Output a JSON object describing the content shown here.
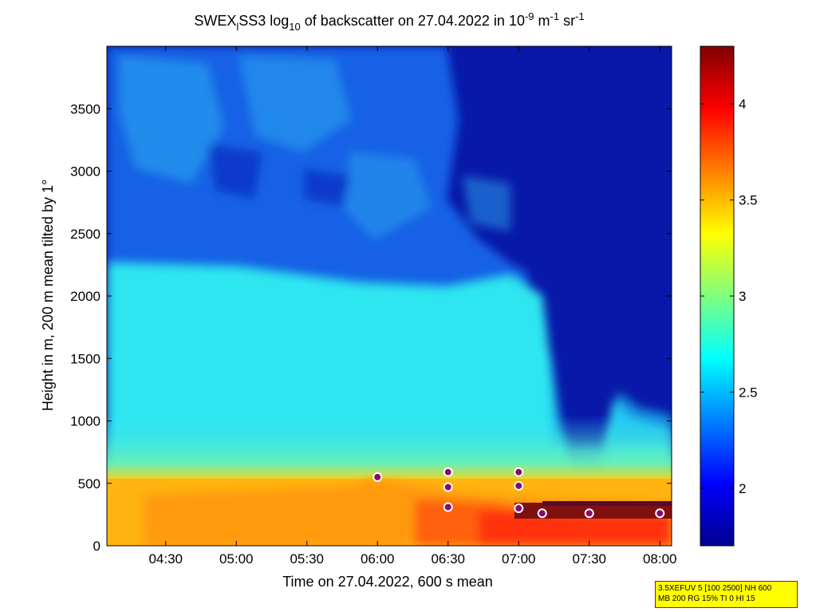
{
  "chart_data": {
    "type": "heatmap",
    "title": {
      "prefix": "SWEX",
      "prefix_sub": "l",
      "part1": "SS3 log",
      "log_sub": "10",
      "part2": " of backscatter on 27.04.2022 in 10",
      "exp1": "-9",
      "part3": " m",
      "exp2": "-1",
      "part4": " sr",
      "exp3": "-1"
    },
    "xlabel": "Time on 27.04.2022, 600 s mean",
    "ylabel": "Height in m, 200 m mean tilted by 1°",
    "x_range": [
      "04:05",
      "08:05"
    ],
    "y_range": [
      0,
      4000
    ],
    "x_ticks": [
      {
        "label": "04:30",
        "minutes": 270
      },
      {
        "label": "05:00",
        "minutes": 300
      },
      {
        "label": "05:30",
        "minutes": 330
      },
      {
        "label": "06:00",
        "minutes": 360
      },
      {
        "label": "06:30",
        "minutes": 390
      },
      {
        "label": "07:00",
        "minutes": 420
      },
      {
        "label": "07:30",
        "minutes": 450
      },
      {
        "label": "08:00",
        "minutes": 480
      }
    ],
    "y_ticks": [
      "0",
      "500",
      "1000",
      "1500",
      "2000",
      "2500",
      "3000",
      "3500"
    ],
    "colorbar": {
      "range": [
        1.7,
        4.3
      ],
      "ticks": [
        "2",
        "2.5",
        "3",
        "3.5",
        "4"
      ],
      "colormap": "jet"
    },
    "cloud_base_markers": [
      {
        "time": "06:00",
        "height": 550
      },
      {
        "time": "06:30",
        "height": 310
      },
      {
        "time": "06:30",
        "height": 590
      },
      {
        "time": "06:30",
        "height": 470
      },
      {
        "time": "07:00",
        "height": 300
      },
      {
        "time": "07:00",
        "height": 590
      },
      {
        "time": "07:00",
        "height": 480
      },
      {
        "time": "07:10",
        "height": 260
      },
      {
        "time": "07:30",
        "height": 260
      },
      {
        "time": "08:00",
        "height": 260
      }
    ]
  },
  "note": {
    "line1": "3.5XEFUV 5 [100 2500] NH 600",
    "line2": "MB 200 RG 15% TI 0 HI 15"
  }
}
